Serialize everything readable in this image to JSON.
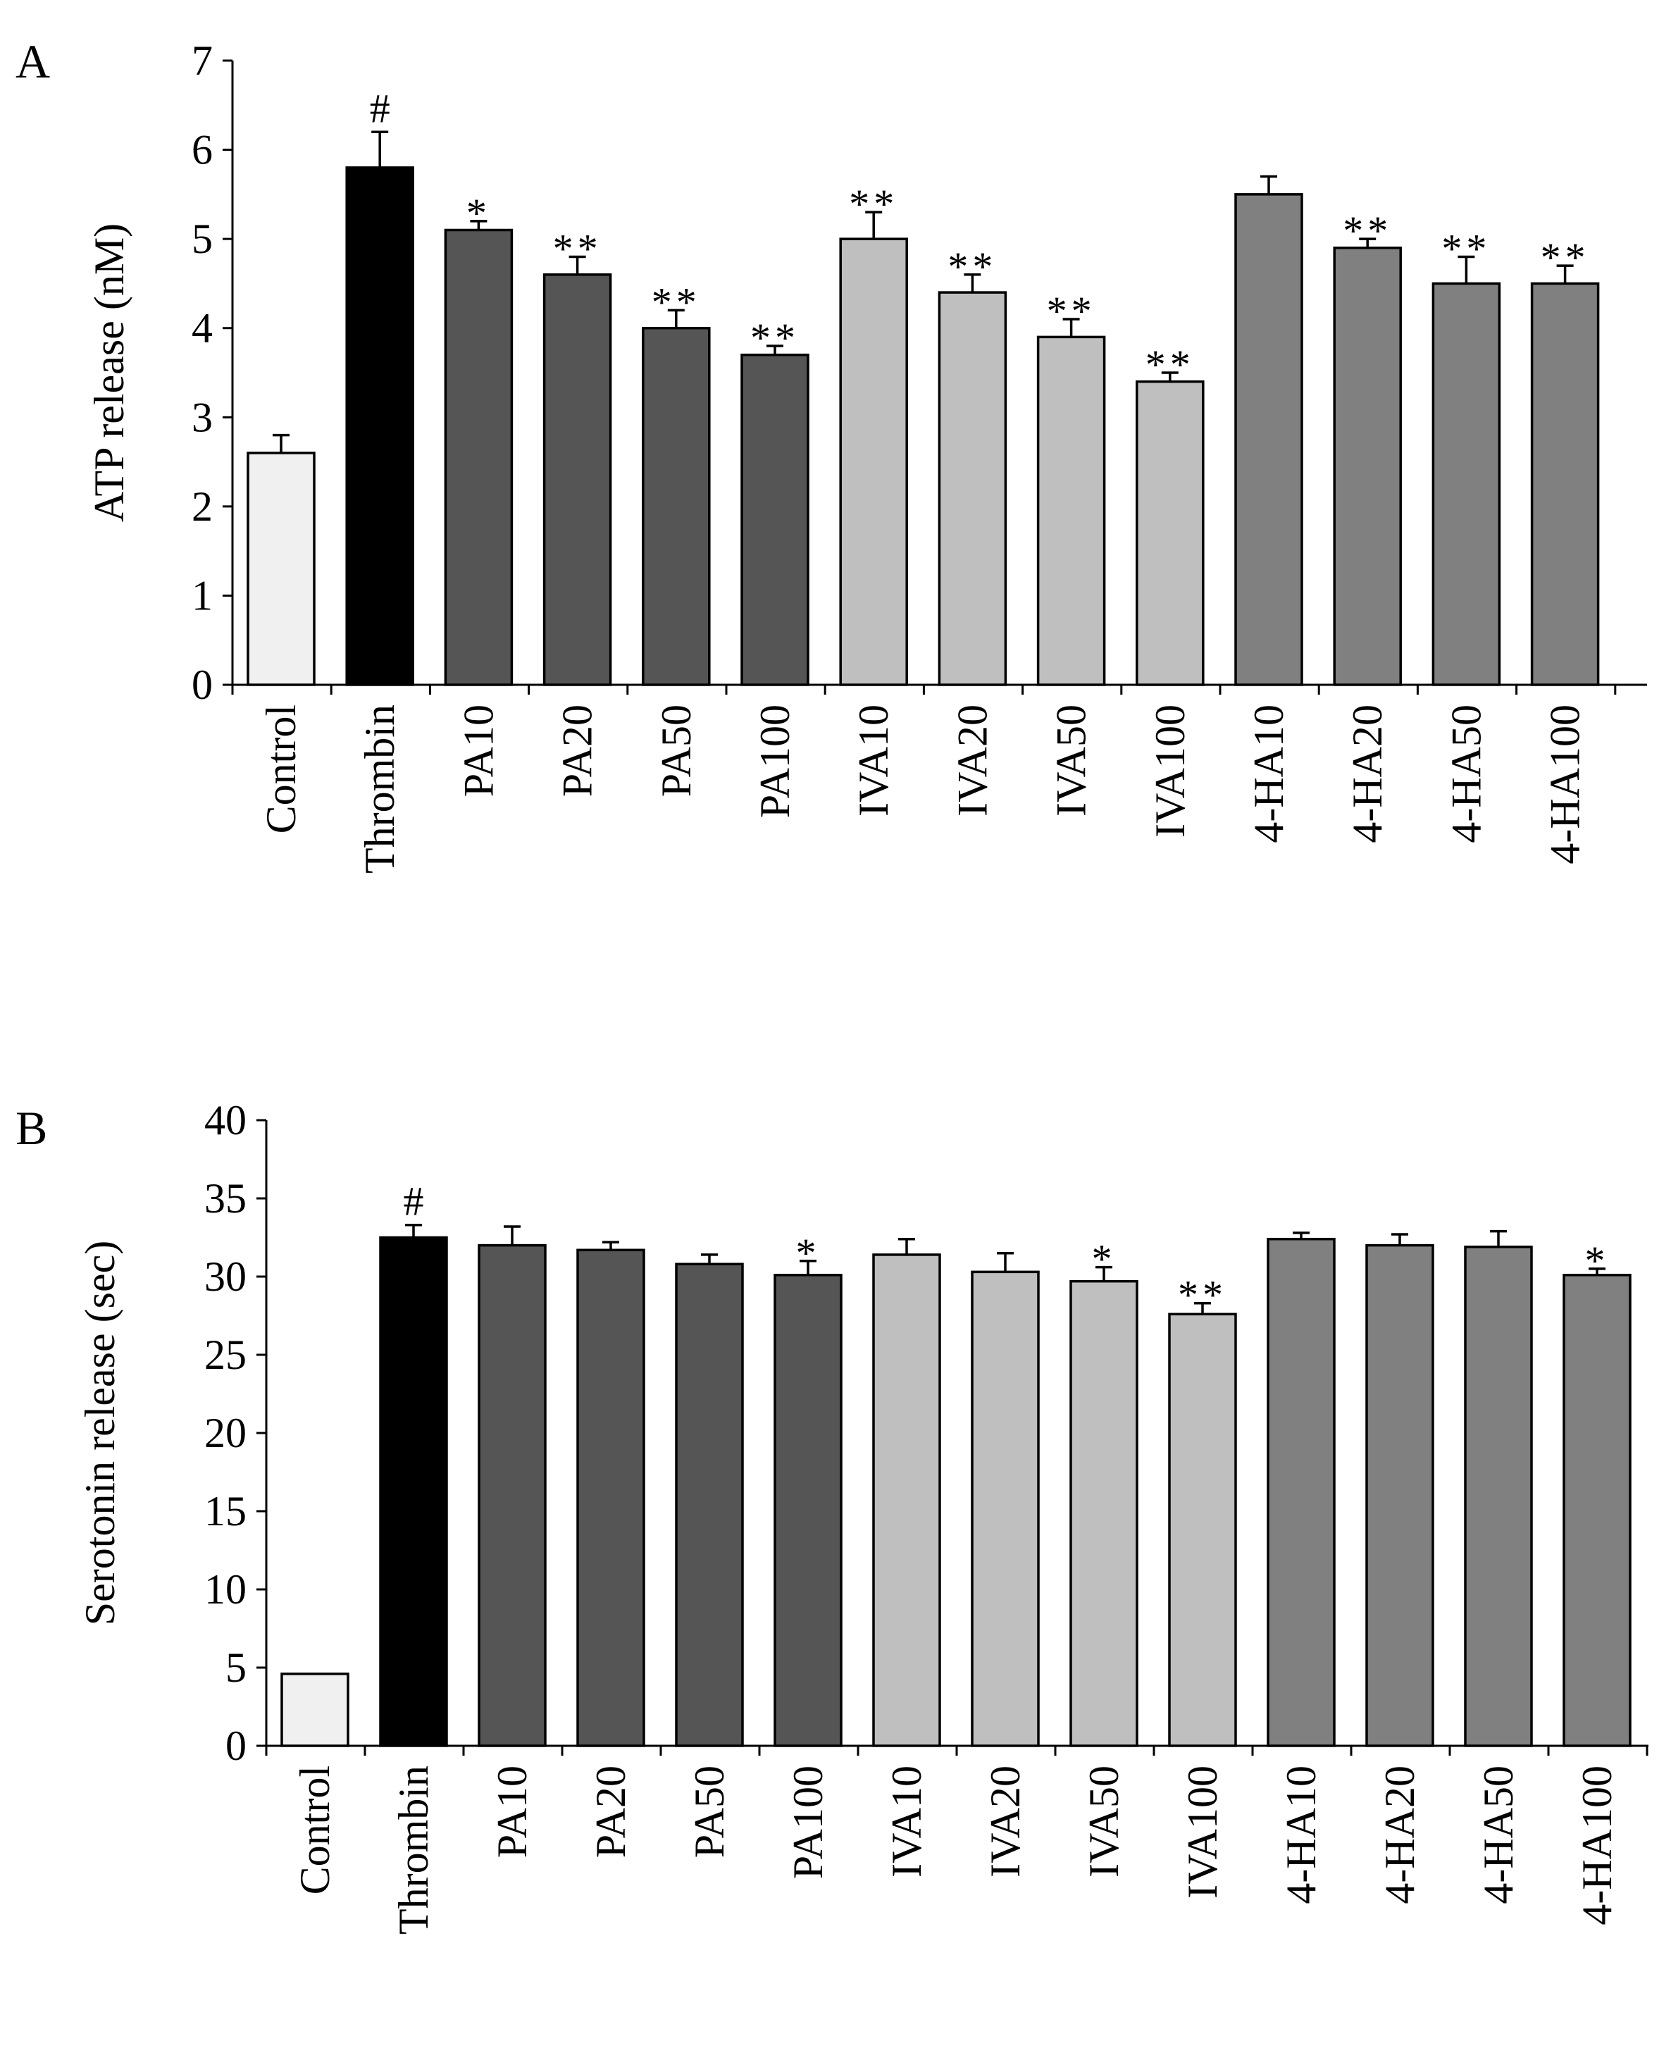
{
  "chart_data": [
    {
      "type": "bar",
      "panel_label": "A",
      "title": "",
      "xlabel": "",
      "ylabel": "ATP release (nM)",
      "ylim": [
        0,
        7
      ],
      "yticks": [
        "0",
        "1",
        "2",
        "3",
        "4",
        "5",
        "6",
        "7"
      ],
      "categories": [
        "Control",
        "Thrombin",
        "PA10",
        "PA20",
        "PA50",
        "PA100",
        "IVA10",
        "IVA20",
        "IVA50",
        "IVA100",
        "4-HA10",
        "4-HA20",
        "4-HA50",
        "4-HA100"
      ],
      "values": [
        2.6,
        5.8,
        5.1,
        4.6,
        4.0,
        3.7,
        5.0,
        4.4,
        3.9,
        3.4,
        5.5,
        4.9,
        4.5,
        4.5
      ],
      "errors": [
        0.2,
        0.4,
        0.1,
        0.2,
        0.2,
        0.1,
        0.3,
        0.2,
        0.2,
        0.1,
        0.2,
        0.1,
        0.3,
        0.2
      ],
      "significance": [
        "",
        "#",
        "*",
        "**",
        "**",
        "**",
        "**",
        "**",
        "**",
        "**",
        "",
        "**",
        "**",
        "**"
      ],
      "bar_colors": [
        "#f0f0f0",
        "#000000",
        "#555555",
        "#555555",
        "#555555",
        "#555555",
        "#bfbfbf",
        "#bfbfbf",
        "#bfbfbf",
        "#bfbfbf",
        "#808080",
        "#808080",
        "#808080",
        "#808080"
      ]
    },
    {
      "type": "bar",
      "panel_label": "B",
      "title": "",
      "xlabel": "",
      "ylabel": "Serotonin release (sec)",
      "ylim": [
        0,
        40
      ],
      "yticks": [
        "0",
        "5",
        "10",
        "15",
        "20",
        "25",
        "30",
        "35",
        "40"
      ],
      "categories": [
        "Control",
        "Thrombin",
        "PA10",
        "PA20",
        "PA50",
        "PA100",
        "IVA10",
        "IVA20",
        "IVA50",
        "IVA100",
        "4-HA10",
        "4-HA20",
        "4-HA50",
        "4-HA100"
      ],
      "values": [
        4.6,
        32.5,
        32.0,
        31.7,
        30.8,
        30.1,
        31.4,
        30.3,
        29.7,
        27.6,
        32.4,
        32.0,
        31.9,
        30.1
      ],
      "errors": [
        0.0,
        0.8,
        1.2,
        0.5,
        0.6,
        0.9,
        1.0,
        1.2,
        0.9,
        0.7,
        0.4,
        0.7,
        1.0,
        0.4
      ],
      "significance": [
        "",
        "#",
        "",
        "",
        "",
        "*",
        "",
        "",
        "*",
        "**",
        "",
        "",
        "",
        "*"
      ],
      "bar_colors": [
        "#f0f0f0",
        "#000000",
        "#555555",
        "#555555",
        "#555555",
        "#555555",
        "#bfbfbf",
        "#bfbfbf",
        "#bfbfbf",
        "#bfbfbf",
        "#808080",
        "#808080",
        "#808080",
        "#808080"
      ]
    }
  ]
}
